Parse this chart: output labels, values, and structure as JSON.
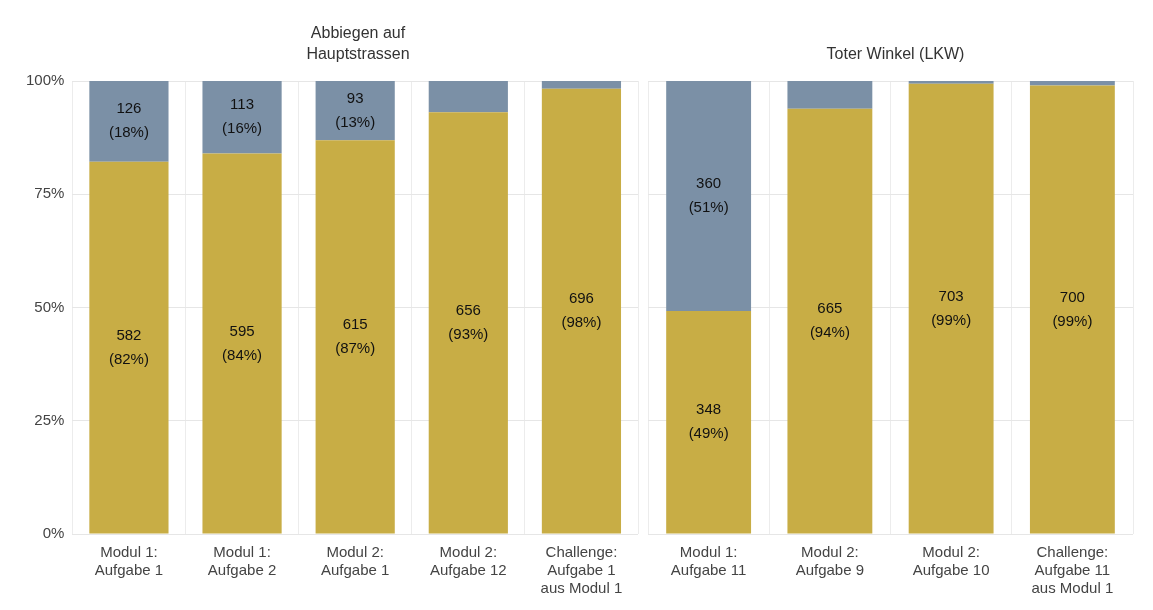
{
  "chart_data": [
    {
      "type": "bar",
      "title": "Abbiegen auf\nHauptstrassen",
      "stacked": true,
      "grid": true,
      "categories": [
        "Modul 1:\nAufgabe 1",
        "Modul 1:\nAufgabe 2",
        "Modul 2:\nAufgabe 1",
        "Modul 2:\nAufgabe 12",
        "Challenge:\nAufgabe 1\naus Modul 1"
      ],
      "ylim": [
        0,
        100
      ],
      "yticks": [
        {
          "value": 0,
          "label": "0%"
        },
        {
          "value": 25,
          "label": "25%"
        },
        {
          "value": 50,
          "label": "50%"
        },
        {
          "value": 75,
          "label": "75%"
        },
        {
          "value": 100,
          "label": "100%"
        }
      ],
      "series": [
        {
          "color": "#c8ad45",
          "values": [
            82.2,
            84.0,
            86.9,
            93.1,
            98.3
          ],
          "value_labels": [
            "582\n(82%)",
            "595\n(84%)",
            "615\n(87%)",
            "656\n(93%)",
            "696\n(98%)"
          ]
        },
        {
          "color": "#7b90a6",
          "values": [
            17.8,
            16.0,
            13.1,
            6.9,
            1.7
          ],
          "value_labels": [
            "126\n(18%)",
            "113\n(16%)",
            "93\n(13%)",
            null,
            null
          ]
        }
      ]
    },
    {
      "type": "bar",
      "title": "Toter Winkel (LKW)",
      "stacked": true,
      "grid": true,
      "tick_labels": "x",
      "categories": [
        "Modul 1:\nAufgabe 11",
        "Modul 2:\nAufgabe 9",
        "Modul 2:\nAufgabe 10",
        "Challenge:\nAufgabe 11\naus Modul 1"
      ],
      "ylim": [
        0,
        100
      ],
      "yticks": [
        {
          "value": 0,
          "label": null
        },
        {
          "value": 25,
          "label": null
        },
        {
          "value": 50,
          "label": null
        },
        {
          "value": 75,
          "label": null
        },
        {
          "value": 100,
          "label": null
        }
      ],
      "series": [
        {
          "color": "#c8ad45",
          "values": [
            49.2,
            93.9,
            99.4,
            99.0
          ],
          "value_labels": [
            "348\n(49%)",
            "665\n(94%)",
            "703\n(99%)",
            "700\n(99%)"
          ]
        },
        {
          "color": "#7b90a6",
          "values": [
            50.8,
            6.1,
            0.6,
            1.0
          ],
          "value_labels": [
            "360\n(51%)",
            null,
            null,
            null
          ]
        }
      ]
    }
  ]
}
